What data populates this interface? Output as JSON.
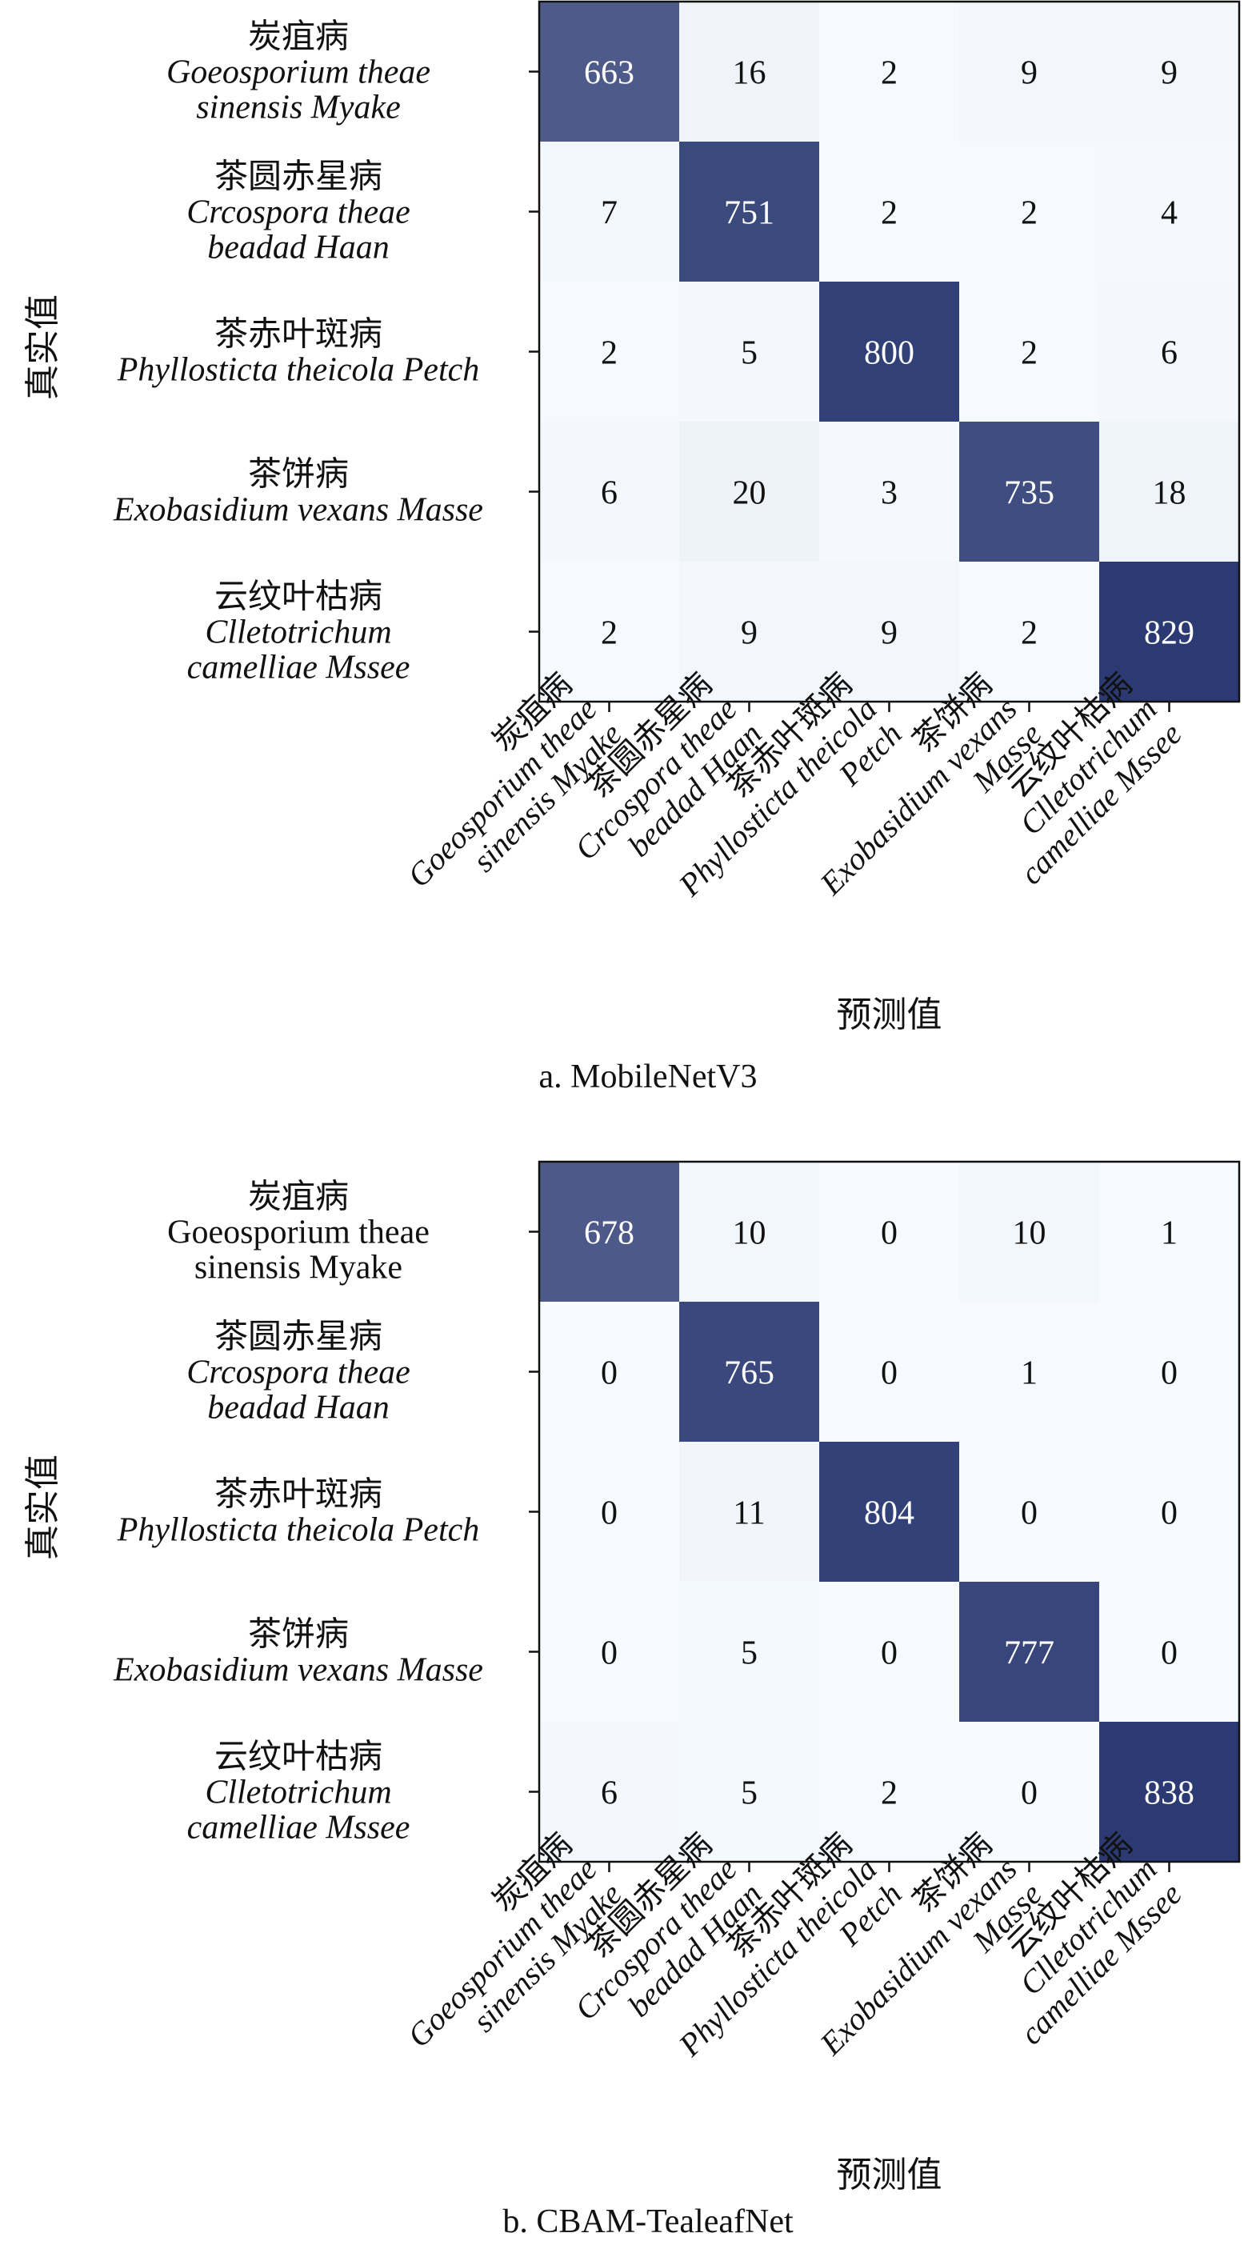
{
  "chart_data": [
    {
      "type": "heatmap",
      "caption": "a. MobileNetV3",
      "xlabel": "预测值",
      "ylabel": "真实值",
      "classes": [
        {
          "cn": "炭疽病",
          "latin": [
            "Goeosporium theae",
            "sinensis Myake"
          ],
          "latin_italic": true
        },
        {
          "cn": "茶圆赤星病",
          "latin": [
            "Crcospora theae",
            "beadad Haan"
          ],
          "latin_italic": true
        },
        {
          "cn": "茶赤叶斑病",
          "latin": [
            "Phyllosticta theicola Petch"
          ],
          "latin_italic": true
        },
        {
          "cn": "茶饼病",
          "latin": [
            "Exobasidium vexans Masse"
          ],
          "latin_italic": true
        },
        {
          "cn": "云纹叶枯病",
          "latin": [
            "Clletotrichum",
            "camelliae Mssee"
          ],
          "latin_italic": true
        }
      ],
      "x_tick_lines": [
        [
          "炭疽病",
          "Goeosporium theae",
          "sinensis Myake"
        ],
        [
          "茶圆赤星病",
          "Crcospora theae",
          "beadad Haan"
        ],
        [
          "茶赤叶斑病",
          "Phyllosticta theicola",
          "Petch"
        ],
        [
          "茶饼病",
          "Exobasidium vexans",
          "Masse"
        ],
        [
          "云纹叶枯病",
          "Clletotrichum",
          "camelliae Mssee"
        ]
      ],
      "matrix": [
        [
          663,
          16,
          2,
          9,
          9
        ],
        [
          7,
          751,
          2,
          2,
          4
        ],
        [
          2,
          5,
          800,
          2,
          6
        ],
        [
          6,
          20,
          3,
          735,
          18
        ],
        [
          2,
          9,
          9,
          2,
          829
        ]
      ],
      "vmin": 0,
      "vmax": 829,
      "colormap": [
        "#f7fbff",
        "#2b3a72"
      ]
    },
    {
      "type": "heatmap",
      "caption": "b. CBAM-TealeafNet",
      "xlabel": "预测值",
      "ylabel": "真实值",
      "classes": [
        {
          "cn": "炭疽病",
          "latin": [
            "Goeosporium theae",
            "sinensis Myake"
          ],
          "latin_italic": false
        },
        {
          "cn": "茶圆赤星病",
          "latin": [
            "Crcospora theae",
            "beadad Haan"
          ],
          "latin_italic": true
        },
        {
          "cn": "茶赤叶斑病",
          "latin": [
            "Phyllosticta theicola Petch"
          ],
          "latin_italic": true
        },
        {
          "cn": "茶饼病",
          "latin": [
            "Exobasidium vexans Masse"
          ],
          "latin_italic": true
        },
        {
          "cn": "云纹叶枯病",
          "latin": [
            "Clletotrichum",
            "camelliae Mssee"
          ],
          "latin_italic": true
        }
      ],
      "x_tick_lines": [
        [
          "炭疽病",
          "Goeosporium theae",
          "sinensis Myake"
        ],
        [
          "茶圆赤星病",
          "Crcospora theae",
          "beadad Haan"
        ],
        [
          "茶赤叶斑病",
          "Phyllosticta theicola",
          "Petch"
        ],
        [
          "茶饼病",
          "Exobasidium vexans",
          "Masse"
        ],
        [
          "云纹叶枯病",
          "Clletotrichum",
          "camelliae Mssee"
        ]
      ],
      "matrix": [
        [
          678,
          10,
          0,
          10,
          1
        ],
        [
          0,
          765,
          0,
          1,
          0
        ],
        [
          0,
          11,
          804,
          0,
          0
        ],
        [
          0,
          5,
          0,
          777,
          0
        ],
        [
          6,
          5,
          2,
          0,
          838
        ]
      ],
      "vmin": 0,
      "vmax": 838,
      "colormap": [
        "#f7fbff",
        "#2b3a72"
      ]
    }
  ]
}
